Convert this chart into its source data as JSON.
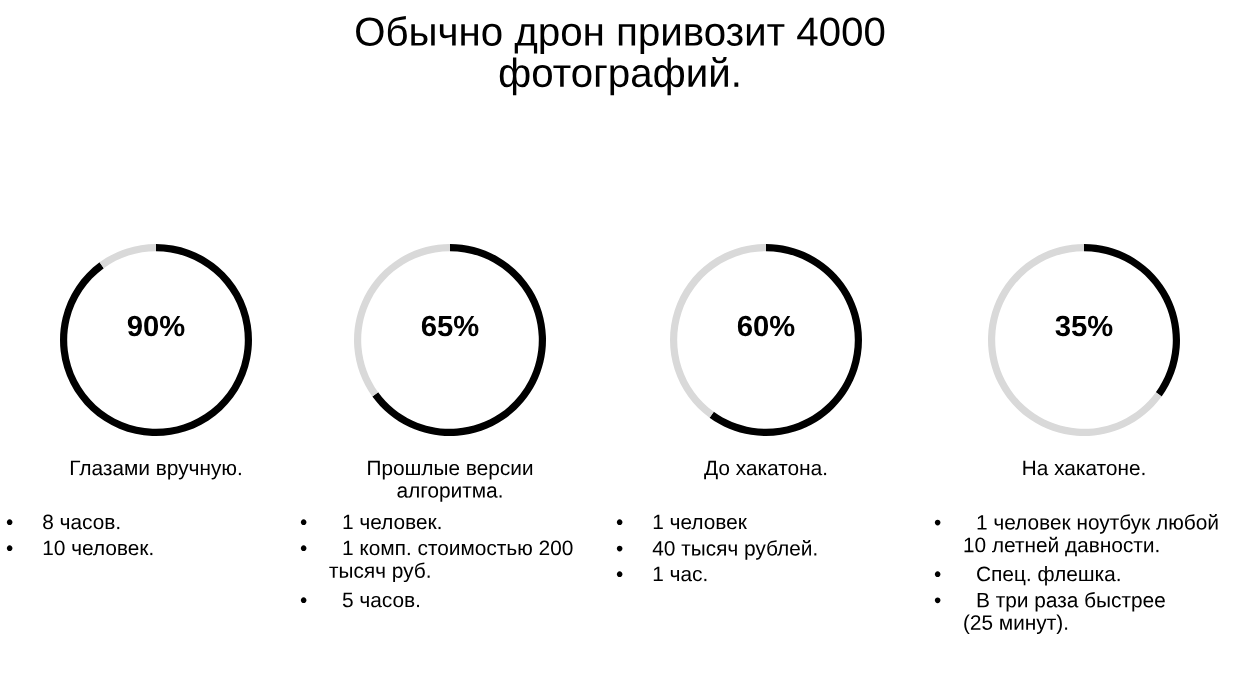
{
  "chart_data": [
    {
      "type": "donut",
      "title": "Обычно дрон привозит 4000\nфотографий.",
      "categories": [
        null,
        null
      ],
      "values": [
        90,
        10
      ],
      "colors": [
        "#000000",
        "#d9d9d9"
      ],
      "value_labels": [
        "90%",
        null
      ],
      "annotations": [
        "Глазами вручную.",
        "•     8 часов.",
        "•     10 человек."
      ]
    },
    {
      "type": "donut",
      "categories": [
        null,
        null
      ],
      "values": [
        65,
        35
      ],
      "colors": [
        "#000000",
        "#d9d9d9"
      ],
      "value_labels": [
        "65%",
        null
      ],
      "annotations": [
        "Прошлые версии\nалгоритма.",
        "•      1 человек.",
        "•      1 комп. стоимостью 200\n     тысяч руб.",
        "•      5 часов."
      ]
    },
    {
      "type": "donut",
      "categories": [
        null,
        null
      ],
      "values": [
        60,
        40
      ],
      "colors": [
        "#000000",
        "#d9d9d9"
      ],
      "value_labels": [
        "60%",
        null
      ],
      "annotations": [
        "До хакатона.",
        "•     1 человек",
        "•     40 тысяч рублей.",
        "•     1 час."
      ]
    },
    {
      "type": "donut",
      "categories": [
        null,
        null
      ],
      "values": [
        35,
        65
      ],
      "colors": [
        "#000000",
        "#d9d9d9"
      ],
      "value_labels": [
        "35%",
        null
      ],
      "annotations": [
        "На хакатоне.",
        "•      1 человек ноутбук любой\n     10 летней давности.",
        "•      Спец. флешка.",
        "•      В три раза быстрее\n     (25 минут)."
      ]
    }
  ]
}
